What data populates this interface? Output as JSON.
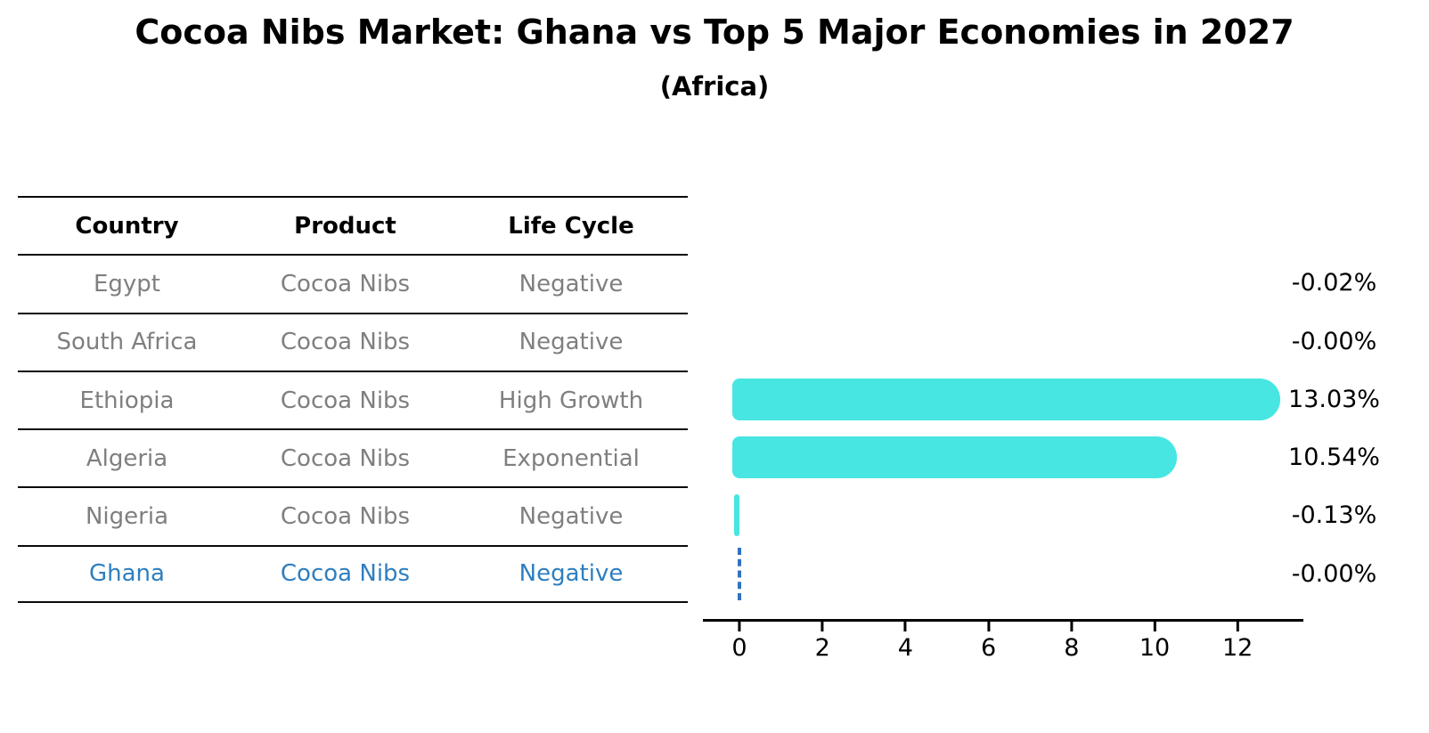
{
  "title": "Cocoa Nibs Market: Ghana vs Top 5 Major Economies in 2027",
  "subtitle": "(Africa)",
  "table": {
    "headers": [
      "Country",
      "Product",
      "Life Cycle"
    ],
    "rows": [
      {
        "country": "Egypt",
        "product": "Cocoa Nibs",
        "life_cycle": "Negative",
        "highlight": false
      },
      {
        "country": "South Africa",
        "product": "Cocoa Nibs",
        "life_cycle": "Negative",
        "highlight": false
      },
      {
        "country": "Ethiopia",
        "product": "Cocoa Nibs",
        "life_cycle": "High Growth",
        "highlight": false
      },
      {
        "country": "Algeria",
        "product": "Cocoa Nibs",
        "life_cycle": "Exponential",
        "highlight": false
      },
      {
        "country": "Nigeria",
        "product": "Cocoa Nibs",
        "life_cycle": "Negative",
        "highlight": false
      },
      {
        "country": "Ghana",
        "product": "Cocoa Nibs",
        "life_cycle": "Negative",
        "highlight": true
      }
    ]
  },
  "chart_data": {
    "type": "bar",
    "orientation": "horizontal",
    "title": "Cocoa Nibs Market: Ghana vs Top 5 Major Economies in 2027",
    "subtitle": "(Africa)",
    "categories": [
      "Egypt",
      "South Africa",
      "Ethiopia",
      "Algeria",
      "Nigeria",
      "Ghana"
    ],
    "values": [
      -0.02,
      -0.0,
      13.03,
      10.54,
      -0.13,
      -0.0
    ],
    "value_labels": [
      "-0.02%",
      "-0.00%",
      "13.03%",
      "10.54%",
      "-0.13%",
      "-0.00%"
    ],
    "x_ticks": [
      0,
      2,
      4,
      6,
      8,
      10,
      12
    ],
    "xlim": [
      -0.9,
      13.6
    ],
    "grid": false,
    "legend": "none",
    "highlight_category": "Ghana",
    "highlight_marker": "dashed vertical line at zero"
  },
  "colors": {
    "bar": "#47e6e2",
    "highlight_text": "#2e7ec0",
    "highlight_line": "#3273bf",
    "table_text": "#7f7f7f",
    "axis": "#000000"
  }
}
